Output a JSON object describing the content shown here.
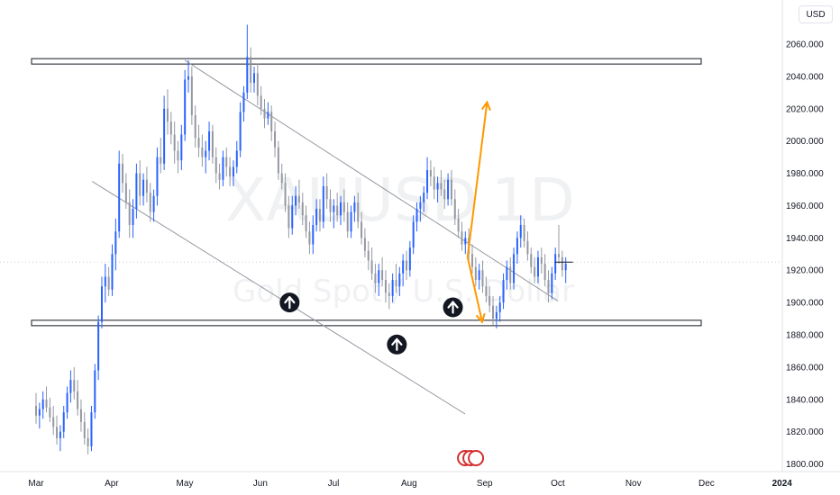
{
  "currency": "USD",
  "watermark": {
    "symbol": "XAUUSD",
    "interval": "1D",
    "description": "Gold Spot / U.S. Dollar"
  },
  "chart_data": {
    "type": "candlestick",
    "title": "",
    "ylim": [
      1800,
      2070
    ],
    "y_ticks": [
      1800,
      1820,
      1840,
      1860,
      1880,
      1900,
      1920,
      1940,
      1960,
      1980,
      2000,
      2020,
      2040,
      2060
    ],
    "y_tick_labels": [
      "1800.000",
      "1820.000",
      "1840.000",
      "1860.000",
      "1880.000",
      "1900.000",
      "1920.000",
      "1940.000",
      "1960.000",
      "1980.000",
      "2000.000",
      "2020.000",
      "2040.000",
      "2060.000"
    ],
    "x_labels": [
      "Mar",
      "Apr",
      "May",
      "Jun",
      "Jul",
      "Aug",
      "Sep",
      "Oct",
      "Nov",
      "Dec",
      "2024"
    ],
    "x_label_day_index": [
      0,
      31,
      61,
      92,
      122,
      153,
      184,
      214,
      245,
      275,
      306
    ],
    "up_color": "#2962ff",
    "down_color": "#9598a1",
    "candles": [
      [
        1836,
        1844,
        1825,
        1830
      ],
      [
        1830,
        1838,
        1822,
        1834
      ],
      [
        1834,
        1845,
        1828,
        1840
      ],
      [
        1840,
        1848,
        1832,
        1835
      ],
      [
        1835,
        1841,
        1826,
        1829
      ],
      [
        1829,
        1836,
        1818,
        1823
      ],
      [
        1823,
        1830,
        1812,
        1816
      ],
      [
        1816,
        1824,
        1808,
        1820
      ],
      [
        1820,
        1836,
        1816,
        1832
      ],
      [
        1832,
        1848,
        1828,
        1844
      ],
      [
        1844,
        1858,
        1838,
        1852
      ],
      [
        1852,
        1860,
        1840,
        1845
      ],
      [
        1845,
        1852,
        1830,
        1834
      ],
      [
        1834,
        1840,
        1820,
        1826
      ],
      [
        1826,
        1832,
        1812,
        1816
      ],
      [
        1816,
        1822,
        1806,
        1811
      ],
      [
        1811,
        1836,
        1808,
        1832
      ],
      [
        1832,
        1862,
        1828,
        1858
      ],
      [
        1858,
        1892,
        1852,
        1888
      ],
      [
        1888,
        1916,
        1884,
        1910
      ],
      [
        1910,
        1924,
        1900,
        1916
      ],
      [
        1916,
        1922,
        1904,
        1908
      ],
      [
        1908,
        1936,
        1904,
        1930
      ],
      [
        1930,
        1952,
        1920,
        1944
      ],
      [
        1944,
        1994,
        1940,
        1986
      ],
      [
        1986,
        1992,
        1968,
        1974
      ],
      [
        1974,
        1980,
        1958,
        1962
      ],
      [
        1962,
        1970,
        1940,
        1948
      ],
      [
        1948,
        1964,
        1940,
        1958
      ],
      [
        1958,
        1986,
        1952,
        1980
      ],
      [
        1980,
        1988,
        1960,
        1966
      ],
      [
        1966,
        1980,
        1960,
        1976
      ],
      [
        1976,
        1984,
        1962,
        1968
      ],
      [
        1968,
        1974,
        1950,
        1956
      ],
      [
        1956,
        1970,
        1950,
        1966
      ],
      [
        1966,
        1996,
        1960,
        1990
      ],
      [
        1990,
        2002,
        1980,
        1986
      ],
      [
        1986,
        2028,
        1982,
        2020
      ],
      [
        2020,
        2032,
        2004,
        2012
      ],
      [
        2012,
        2018,
        1998,
        2004
      ],
      [
        2004,
        2012,
        1986,
        1994
      ],
      [
        1994,
        2000,
        1980,
        1988
      ],
      [
        1988,
        2010,
        1982,
        2004
      ],
      [
        2004,
        2044,
        2000,
        2038
      ],
      [
        2038,
        2050,
        2030,
        2040
      ],
      [
        2040,
        2046,
        2010,
        2016
      ],
      [
        2016,
        2022,
        1996,
        2002
      ],
      [
        2002,
        2010,
        1990,
        1996
      ],
      [
        1996,
        2004,
        1984,
        1990
      ],
      [
        1990,
        2000,
        1980,
        1994
      ],
      [
        1994,
        2012,
        1988,
        2006
      ],
      [
        2006,
        2010,
        1986,
        1990
      ],
      [
        1990,
        1996,
        1974,
        1980
      ],
      [
        1980,
        1986,
        1970,
        1976
      ],
      [
        1976,
        1994,
        1972,
        1990
      ],
      [
        1990,
        1996,
        1978,
        1984
      ],
      [
        1984,
        1990,
        1972,
        1978
      ],
      [
        1978,
        1988,
        1972,
        1984
      ],
      [
        1984,
        2000,
        1980,
        1994
      ],
      [
        1994,
        2024,
        1990,
        2018
      ],
      [
        2018,
        2034,
        2012,
        2030
      ],
      [
        2030,
        2072,
        2026,
        2052
      ],
      [
        2052,
        2058,
        2030,
        2036
      ],
      [
        2036,
        2046,
        2030,
        2042
      ],
      [
        2042,
        2048,
        2022,
        2028
      ],
      [
        2028,
        2034,
        2016,
        2020
      ],
      [
        2020,
        2026,
        2008,
        2014
      ],
      [
        2014,
        2024,
        2010,
        2018
      ],
      [
        2018,
        2022,
        2000,
        2006
      ],
      [
        2006,
        2012,
        1990,
        1996
      ],
      [
        1996,
        2000,
        1976,
        1980
      ],
      [
        1980,
        1986,
        1970,
        1974
      ],
      [
        1974,
        1980,
        1956,
        1960
      ],
      [
        1960,
        1966,
        1940,
        1946
      ],
      [
        1946,
        1966,
        1942,
        1960
      ],
      [
        1960,
        1972,
        1954,
        1966
      ],
      [
        1966,
        1976,
        1958,
        1962
      ],
      [
        1962,
        1968,
        1948,
        1954
      ],
      [
        1954,
        1960,
        1940,
        1944
      ],
      [
        1944,
        1950,
        1930,
        1936
      ],
      [
        1936,
        1954,
        1930,
        1948
      ],
      [
        1948,
        1964,
        1944,
        1958
      ],
      [
        1958,
        1964,
        1944,
        1950
      ],
      [
        1950,
        1978,
        1946,
        1972
      ],
      [
        1972,
        1980,
        1958,
        1964
      ],
      [
        1964,
        1970,
        1950,
        1956
      ],
      [
        1956,
        1964,
        1946,
        1960
      ],
      [
        1960,
        1968,
        1950,
        1954
      ],
      [
        1954,
        1966,
        1948,
        1962
      ],
      [
        1962,
        1970,
        1950,
        1956
      ],
      [
        1956,
        1962,
        1940,
        1944
      ],
      [
        1944,
        1960,
        1940,
        1956
      ],
      [
        1956,
        1966,
        1950,
        1962
      ],
      [
        1962,
        1968,
        1946,
        1950
      ],
      [
        1950,
        1956,
        1936,
        1940
      ],
      [
        1940,
        1946,
        1928,
        1932
      ],
      [
        1932,
        1938,
        1920,
        1926
      ],
      [
        1926,
        1934,
        1914,
        1918
      ],
      [
        1918,
        1924,
        1906,
        1912
      ],
      [
        1912,
        1924,
        1904,
        1920
      ],
      [
        1920,
        1928,
        1910,
        1914
      ],
      [
        1914,
        1920,
        1900,
        1906
      ],
      [
        1906,
        1912,
        1896,
        1904
      ],
      [
        1904,
        1918,
        1900,
        1914
      ],
      [
        1914,
        1924,
        1906,
        1910
      ],
      [
        1910,
        1922,
        1904,
        1918
      ],
      [
        1918,
        1930,
        1910,
        1926
      ],
      [
        1926,
        1932,
        1914,
        1920
      ],
      [
        1920,
        1938,
        1916,
        1934
      ],
      [
        1934,
        1954,
        1930,
        1950
      ],
      [
        1950,
        1962,
        1944,
        1958
      ],
      [
        1958,
        1966,
        1950,
        1962
      ],
      [
        1962,
        1972,
        1956,
        1968
      ],
      [
        1968,
        1990,
        1964,
        1982
      ],
      [
        1982,
        1988,
        1972,
        1978
      ],
      [
        1978,
        1984,
        1964,
        1970
      ],
      [
        1970,
        1978,
        1962,
        1974
      ],
      [
        1974,
        1982,
        1966,
        1970
      ],
      [
        1970,
        1976,
        1958,
        1964
      ],
      [
        1964,
        1980,
        1960,
        1976
      ],
      [
        1976,
        1982,
        1960,
        1964
      ],
      [
        1964,
        1970,
        1948,
        1952
      ],
      [
        1952,
        1958,
        1940,
        1944
      ],
      [
        1944,
        1950,
        1932,
        1936
      ],
      [
        1936,
        1944,
        1930,
        1940
      ],
      [
        1940,
        1946,
        1926,
        1930
      ],
      [
        1930,
        1936,
        1918,
        1922
      ],
      [
        1922,
        1928,
        1910,
        1914
      ],
      [
        1914,
        1924,
        1908,
        1920
      ],
      [
        1920,
        1926,
        1906,
        1910
      ],
      [
        1910,
        1916,
        1900,
        1904
      ],
      [
        1904,
        1910,
        1894,
        1898
      ],
      [
        1898,
        1904,
        1886,
        1890
      ],
      [
        1890,
        1898,
        1884,
        1894
      ],
      [
        1894,
        1904,
        1888,
        1900
      ],
      [
        1900,
        1918,
        1896,
        1914
      ],
      [
        1914,
        1926,
        1908,
        1922
      ],
      [
        1922,
        1928,
        1908,
        1912
      ],
      [
        1912,
        1934,
        1908,
        1930
      ],
      [
        1930,
        1944,
        1924,
        1940
      ],
      [
        1940,
        1954,
        1934,
        1948
      ],
      [
        1948,
        1952,
        1934,
        1938
      ],
      [
        1938,
        1944,
        1926,
        1930
      ],
      [
        1930,
        1934,
        1918,
        1922
      ],
      [
        1922,
        1928,
        1912,
        1916
      ],
      [
        1916,
        1932,
        1912,
        1928
      ],
      [
        1928,
        1934,
        1918,
        1924
      ],
      [
        1924,
        1930,
        1910,
        1914
      ],
      [
        1914,
        1920,
        1900,
        1906
      ],
      [
        1906,
        1922,
        1902,
        1918
      ],
      [
        1918,
        1934,
        1914,
        1930
      ],
      [
        1930,
        1948,
        1924,
        1928
      ],
      [
        1928,
        1932,
        1916,
        1920
      ],
      [
        1920,
        1928,
        1912,
        1924
      ]
    ],
    "annotations": {
      "resistance_band": [
        2048,
        2051
      ],
      "support_band": [
        1886,
        1889
      ],
      "channel_upper": [
        [
          61,
          2050
        ],
        [
          214,
          1901
        ]
      ],
      "channel_lower": [
        [
          23,
          1975
        ],
        [
          176,
          1831
        ]
      ],
      "current_price": 1925,
      "arrows_up_markers": [
        [
          104,
          1900
        ],
        [
          148,
          1874
        ],
        [
          171,
          1897
        ]
      ],
      "projection_up": [
        [
          177,
          1928
        ],
        [
          185,
          2024
        ]
      ],
      "projection_down": [
        [
          177,
          1928
        ],
        [
          183,
          1888
        ]
      ],
      "projection_color": "#ff9800",
      "event_marker_day": 176
    }
  }
}
